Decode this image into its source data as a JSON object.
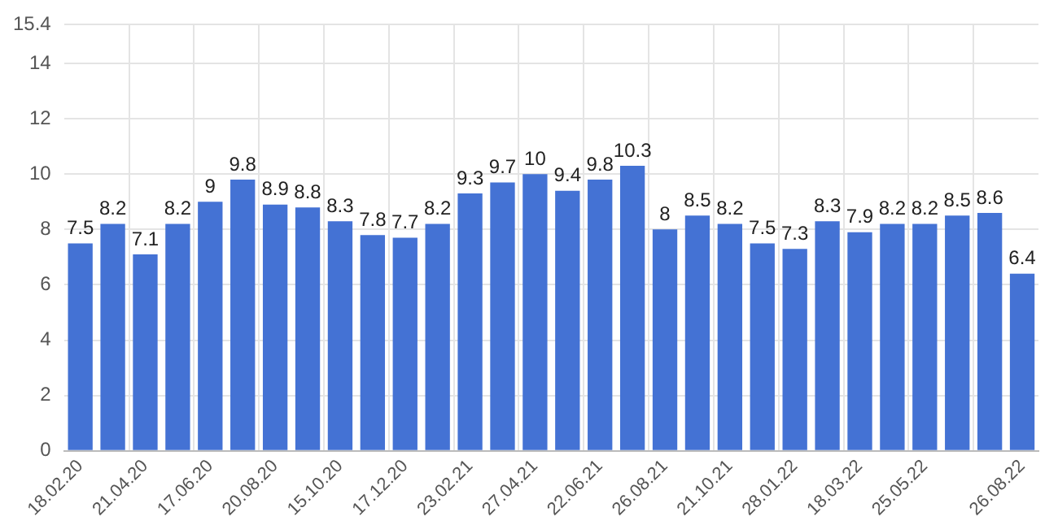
{
  "chart_data": {
    "type": "bar",
    "categories": [
      "18.02.20",
      null,
      "21.04.20",
      null,
      "17.06.20",
      null,
      "20.08.20",
      null,
      "15.10.20",
      null,
      "17.12.20",
      null,
      "23.02.21",
      null,
      "27.04.21",
      null,
      "22.06.21",
      null,
      "26.08.21",
      null,
      "21.10.21",
      null,
      "28.01.22",
      null,
      "18.03.22",
      null,
      "25.05.22",
      null,
      null,
      "26.08.22"
    ],
    "values": [
      7.5,
      8.2,
      7.1,
      8.2,
      9,
      9.8,
      8.9,
      8.8,
      8.3,
      7.8,
      7.7,
      8.2,
      9.3,
      9.7,
      10,
      9.4,
      9.8,
      10.3,
      8,
      8.5,
      8.2,
      7.5,
      7.3,
      8.3,
      7.9,
      8.2,
      8.2,
      8.5,
      8.6,
      6.4
    ],
    "color": "#4472d4",
    "ylim": [
      0,
      15.4
    ],
    "yticks": [
      0,
      2,
      4,
      6,
      8,
      10,
      12,
      14,
      15.4
    ],
    "grid": true,
    "data_labels": true,
    "legend": false
  }
}
